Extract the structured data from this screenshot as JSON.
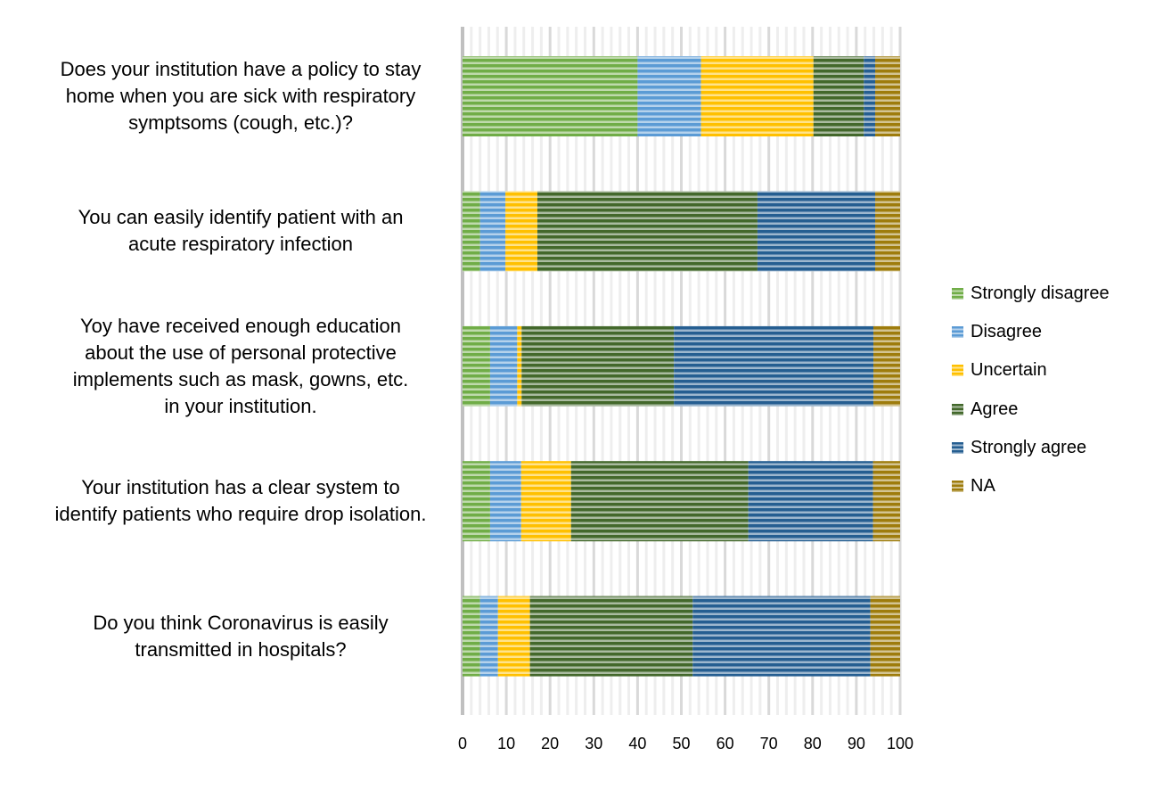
{
  "chart_data": {
    "type": "bar",
    "orientation": "horizontal",
    "stacked": true,
    "title": "",
    "xlabel": "",
    "ylabel": "",
    "xlim": [
      0,
      100
    ],
    "xticks": [
      "0",
      "10",
      "20",
      "30",
      "40",
      "50",
      "60",
      "70",
      "80",
      "90",
      "100"
    ],
    "grid": true,
    "legend_position": "right",
    "categories": [
      "Does your institution have a policy to stay home when you are sick with respiratory symptsoms (cough, etc.)?",
      "You can easily identify patient with an acute respiratory infection",
      "Yoy have received enough education about the use of personal protective implements such as mask, gowns, etc. in your institution.",
      "Your institution has a clear system to identify patients who require drop isolation.",
      "Do you think Coronavirus is easily transmitted in hospitals?"
    ],
    "category_lines": [
      [
        "Does your institution have a policy to stay",
        "home when you are sick with respiratory",
        "symptsoms (cough, etc.)?"
      ],
      [
        "You can easily identify patient with an",
        "acute respiratory infection"
      ],
      [
        "Yoy have received enough education",
        "about the use of personal protective",
        "implements such as mask, gowns, etc.",
        "in your institution."
      ],
      [
        "Your institution has a clear system to",
        "identify patients who require drop isolation."
      ],
      [
        "Do you think Coronavirus is easily",
        "transmitted in hospitals?"
      ]
    ],
    "series": [
      {
        "name": "Strongly disagree",
        "color": "#70ad47",
        "values": [
          40.0,
          4.0,
          6.3,
          6.3,
          4.0
        ]
      },
      {
        "name": "Disagree",
        "color": "#5b9bd5",
        "values": [
          14.5,
          5.8,
          6.2,
          7.1,
          4.1
        ]
      },
      {
        "name": "Uncertain",
        "color": "#ffc000",
        "values": [
          25.7,
          7.3,
          1.0,
          11.4,
          7.3
        ]
      },
      {
        "name": "Agree",
        "color": "#43682b",
        "values": [
          11.5,
          50.3,
          34.8,
          40.5,
          37.2
        ]
      },
      {
        "name": "Strongly agree",
        "color": "#255e91",
        "values": [
          2.6,
          26.9,
          45.6,
          28.5,
          40.6
        ]
      },
      {
        "name": "NA",
        "color": "#9e7c0c",
        "values": [
          5.7,
          5.7,
          6.1,
          6.2,
          6.8
        ]
      }
    ]
  }
}
